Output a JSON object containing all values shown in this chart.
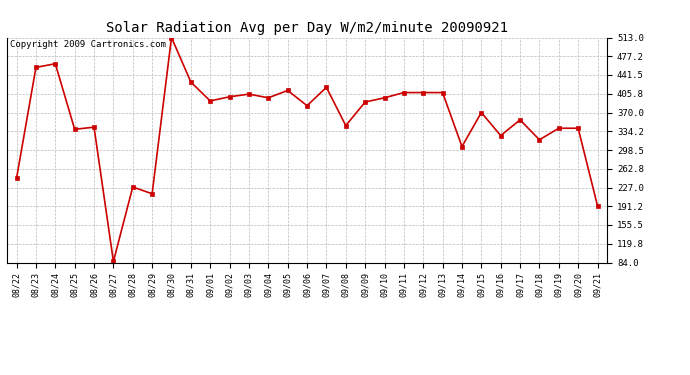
{
  "title": "Solar Radiation Avg per Day W/m2/minute 20090921",
  "copyright_text": "Copyright 2009 Cartronics.com",
  "dates": [
    "08/22",
    "08/23",
    "08/24",
    "08/25",
    "08/26",
    "08/27",
    "08/28",
    "08/29",
    "08/30",
    "08/31",
    "09/01",
    "09/02",
    "09/03",
    "09/04",
    "09/05",
    "09/06",
    "09/07",
    "09/08",
    "09/09",
    "09/10",
    "09/11",
    "09/12",
    "09/13",
    "09/14",
    "09/15",
    "09/16",
    "09/17",
    "09/18",
    "09/19",
    "09/20",
    "09/21"
  ],
  "values": [
    245.0,
    456.0,
    463.0,
    338.0,
    342.0,
    86.0,
    228.0,
    215.0,
    513.0,
    428.0,
    392.0,
    400.0,
    405.0,
    398.0,
    412.0,
    383.0,
    418.0,
    345.0,
    390.0,
    398.0,
    408.0,
    408.0,
    408.0,
    305.0,
    370.0,
    326.0,
    356.0,
    318.0,
    340.0,
    340.0,
    192.0
  ],
  "yticks": [
    84.0,
    119.8,
    155.5,
    191.2,
    227.0,
    262.8,
    298.5,
    334.2,
    370.0,
    405.8,
    441.5,
    477.2,
    513.0
  ],
  "ymin": 84.0,
  "ymax": 513.0,
  "line_color": "#cc0000",
  "marker_color": "#cc0000",
  "bg_color": "#ffffff",
  "grid_color": "#bbbbbb",
  "title_fontsize": 10,
  "copyright_fontsize": 6.5
}
